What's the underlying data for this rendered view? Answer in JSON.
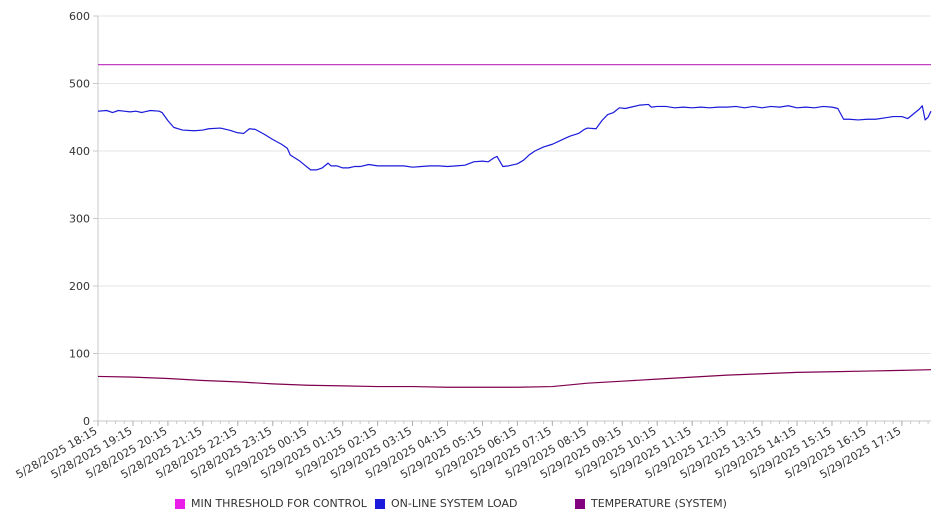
{
  "chart_data": {
    "type": "line",
    "title": "",
    "xlabel": "",
    "ylabel": "",
    "ylim": [
      0,
      600
    ],
    "yticks": [
      0,
      100,
      200,
      300,
      400,
      500,
      600
    ],
    "grid": true,
    "legend_position": "bottom",
    "x_tick_labels": [
      "5/28/2025 18:15",
      "5/28/2025 19:15",
      "5/28/2025 20:15",
      "5/28/2025 21:15",
      "5/28/2025 22:15",
      "5/28/2025 23:15",
      "5/29/2025 00:15",
      "5/29/2025 01:15",
      "5/29/2025 02:15",
      "5/29/2025 03:15",
      "5/29/2025 04:15",
      "5/29/2025 05:15",
      "5/29/2025 06:15",
      "5/29/2025 07:15",
      "5/29/2025 08:15",
      "5/29/2025 09:15",
      "5/29/2025 10:15",
      "5/29/2025 11:15",
      "5/29/2025 12:15",
      "5/29/2025 13:15",
      "5/29/2025 14:15",
      "5/29/2025 15:15",
      "5/29/2025 16:15",
      "5/29/2025 17:15"
    ],
    "x_range": [
      "5/28/2025 18:15",
      "5/29/2025 18:05"
    ],
    "series": [
      {
        "name": "MIN THRESHOLD FOR CONTROL",
        "color": "#e81ee8",
        "line_color": "#c040c0",
        "points": [
          [
            "5/28/2025 18:15",
            528
          ],
          [
            "5/29/2025 18:05",
            528
          ]
        ]
      },
      {
        "name": "ON-LINE SYSTEM LOAD",
        "color": "#1a1adb",
        "line_color": "#1a1adb",
        "points": [
          [
            "5/28/2025 18:15",
            459
          ],
          [
            "5/28/2025 18:30",
            460
          ],
          [
            "5/28/2025 18:40",
            457
          ],
          [
            "5/28/2025 18:50",
            460
          ],
          [
            "5/28/2025 19:00",
            459
          ],
          [
            "5/28/2025 19:10",
            458
          ],
          [
            "5/28/2025 19:20",
            459
          ],
          [
            "5/28/2025 19:30",
            457
          ],
          [
            "5/28/2025 19:35",
            458
          ],
          [
            "5/28/2025 19:45",
            460
          ],
          [
            "5/28/2025 20:00",
            459
          ],
          [
            "5/28/2025 20:05",
            457
          ],
          [
            "5/28/2025 20:15",
            445
          ],
          [
            "5/28/2025 20:25",
            435
          ],
          [
            "5/28/2025 20:40",
            431
          ],
          [
            "5/28/2025 21:00",
            430
          ],
          [
            "5/28/2025 21:15",
            431
          ],
          [
            "5/28/2025 21:25",
            433
          ],
          [
            "5/28/2025 21:45",
            434
          ],
          [
            "5/28/2025 22:00",
            431
          ],
          [
            "5/28/2025 22:15",
            427
          ],
          [
            "5/28/2025 22:25",
            426
          ],
          [
            "5/28/2025 22:35",
            433
          ],
          [
            "5/28/2025 22:45",
            432
          ],
          [
            "5/28/2025 23:00",
            425
          ],
          [
            "5/28/2025 23:15",
            417
          ],
          [
            "5/28/2025 23:30",
            410
          ],
          [
            "5/28/2025 23:40",
            404
          ],
          [
            "5/28/2025 23:45",
            394
          ],
          [
            "5/29/2025 00:00",
            386
          ],
          [
            "5/29/2025 00:10",
            379
          ],
          [
            "5/29/2025 00:20",
            372
          ],
          [
            "5/29/2025 00:30",
            372
          ],
          [
            "5/29/2025 00:40",
            375
          ],
          [
            "5/29/2025 00:50",
            382
          ],
          [
            "5/29/2025 00:55",
            378
          ],
          [
            "5/29/2025 01:05",
            378
          ],
          [
            "5/29/2025 01:15",
            375
          ],
          [
            "5/29/2025 01:25",
            375
          ],
          [
            "5/29/2025 01:35",
            377
          ],
          [
            "5/29/2025 01:45",
            377
          ],
          [
            "5/29/2025 02:00",
            380
          ],
          [
            "5/29/2025 02:15",
            378
          ],
          [
            "5/29/2025 02:30",
            378
          ],
          [
            "5/29/2025 02:45",
            378
          ],
          [
            "5/29/2025 03:00",
            378
          ],
          [
            "5/29/2025 03:15",
            376
          ],
          [
            "5/29/2025 03:30",
            377
          ],
          [
            "5/29/2025 03:45",
            378
          ],
          [
            "5/29/2025 04:00",
            378
          ],
          [
            "5/29/2025 04:15",
            377
          ],
          [
            "5/29/2025 04:30",
            378
          ],
          [
            "5/29/2025 04:45",
            379
          ],
          [
            "5/29/2025 05:00",
            384
          ],
          [
            "5/29/2025 05:15",
            385
          ],
          [
            "5/29/2025 05:25",
            384
          ],
          [
            "5/29/2025 05:35",
            390
          ],
          [
            "5/29/2025 05:40",
            392
          ],
          [
            "5/29/2025 05:50",
            377
          ],
          [
            "5/29/2025 06:00",
            378
          ],
          [
            "5/29/2025 06:15",
            381
          ],
          [
            "5/29/2025 06:25",
            386
          ],
          [
            "5/29/2025 06:35",
            394
          ],
          [
            "5/29/2025 06:45",
            400
          ],
          [
            "5/29/2025 07:00",
            406
          ],
          [
            "5/29/2025 07:15",
            410
          ],
          [
            "5/29/2025 07:30",
            416
          ],
          [
            "5/29/2025 07:45",
            422
          ],
          [
            "5/29/2025 08:00",
            426
          ],
          [
            "5/29/2025 08:10",
            432
          ],
          [
            "5/29/2025 08:15",
            434
          ],
          [
            "5/29/2025 08:30",
            433
          ],
          [
            "5/29/2025 08:40",
            445
          ],
          [
            "5/29/2025 08:50",
            454
          ],
          [
            "5/29/2025 09:00",
            457
          ],
          [
            "5/29/2025 09:10",
            464
          ],
          [
            "5/29/2025 09:20",
            463
          ],
          [
            "5/29/2025 09:30",
            465
          ],
          [
            "5/29/2025 09:45",
            468
          ],
          [
            "5/29/2025 10:00",
            469
          ],
          [
            "5/29/2025 10:05",
            465
          ],
          [
            "5/29/2025 10:15",
            466
          ],
          [
            "5/29/2025 10:30",
            466
          ],
          [
            "5/29/2025 10:45",
            464
          ],
          [
            "5/29/2025 11:00",
            465
          ],
          [
            "5/29/2025 11:15",
            464
          ],
          [
            "5/29/2025 11:30",
            465
          ],
          [
            "5/29/2025 11:45",
            464
          ],
          [
            "5/29/2025 12:00",
            465
          ],
          [
            "5/29/2025 12:15",
            465
          ],
          [
            "5/29/2025 12:30",
            466
          ],
          [
            "5/29/2025 12:45",
            464
          ],
          [
            "5/29/2025 13:00",
            466
          ],
          [
            "5/29/2025 13:15",
            464
          ],
          [
            "5/29/2025 13:30",
            466
          ],
          [
            "5/29/2025 13:45",
            465
          ],
          [
            "5/29/2025 14:00",
            467
          ],
          [
            "5/29/2025 14:15",
            464
          ],
          [
            "5/29/2025 14:30",
            465
          ],
          [
            "5/29/2025 14:45",
            464
          ],
          [
            "5/29/2025 15:00",
            466
          ],
          [
            "5/29/2025 15:15",
            465
          ],
          [
            "5/29/2025 15:25",
            463
          ],
          [
            "5/29/2025 15:30",
            455
          ],
          [
            "5/29/2025 15:35",
            447
          ],
          [
            "5/29/2025 15:45",
            447
          ],
          [
            "5/29/2025 16:00",
            446
          ],
          [
            "5/29/2025 16:15",
            447
          ],
          [
            "5/29/2025 16:30",
            447
          ],
          [
            "5/29/2025 16:45",
            449
          ],
          [
            "5/29/2025 17:00",
            451
          ],
          [
            "5/29/2025 17:15",
            451
          ],
          [
            "5/29/2025 17:25",
            448
          ],
          [
            "5/29/2025 17:35",
            455
          ],
          [
            "5/29/2025 17:45",
            462
          ],
          [
            "5/29/2025 17:50",
            467
          ],
          [
            "5/29/2025 17:55",
            446
          ],
          [
            "5/29/2025 18:00",
            450
          ],
          [
            "5/29/2025 18:05",
            459
          ]
        ]
      },
      {
        "name": "TEMPERATURE (SYSTEM)",
        "color": "#800080",
        "line_color": "#800050",
        "points": [
          [
            "5/28/2025 18:15",
            66
          ],
          [
            "5/28/2025 19:15",
            65
          ],
          [
            "5/28/2025 20:15",
            63
          ],
          [
            "5/28/2025 21:15",
            60
          ],
          [
            "5/28/2025 22:15",
            58
          ],
          [
            "5/28/2025 23:15",
            55
          ],
          [
            "5/29/2025 00:15",
            53
          ],
          [
            "5/29/2025 01:15",
            52
          ],
          [
            "5/29/2025 02:15",
            51
          ],
          [
            "5/29/2025 03:15",
            51
          ],
          [
            "5/29/2025 04:15",
            50
          ],
          [
            "5/29/2025 05:15",
            50
          ],
          [
            "5/29/2025 06:15",
            50
          ],
          [
            "5/29/2025 07:15",
            51
          ],
          [
            "5/29/2025 08:15",
            56
          ],
          [
            "5/29/2025 09:15",
            59
          ],
          [
            "5/29/2025 10:15",
            62
          ],
          [
            "5/29/2025 11:15",
            65
          ],
          [
            "5/29/2025 12:15",
            68
          ],
          [
            "5/29/2025 13:15",
            70
          ],
          [
            "5/29/2025 14:15",
            72
          ],
          [
            "5/29/2025 15:15",
            73
          ],
          [
            "5/29/2025 16:15",
            74
          ],
          [
            "5/29/2025 17:15",
            75
          ],
          [
            "5/29/2025 18:05",
            76
          ]
        ]
      }
    ]
  }
}
